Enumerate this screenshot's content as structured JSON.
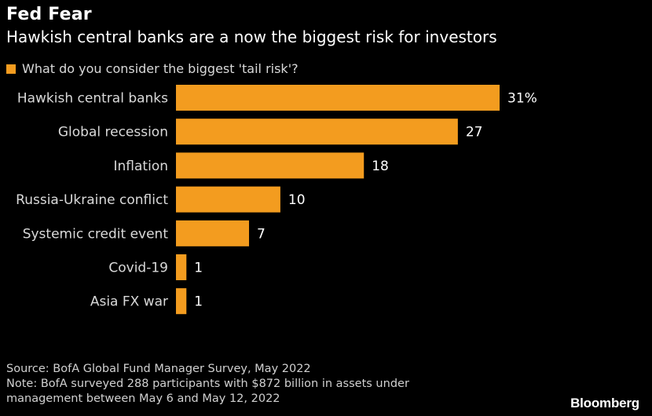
{
  "header": {
    "title": "Fed Fear",
    "subtitle": "Hawkish central banks are a now the biggest risk for investors"
  },
  "legend": {
    "label": "What do you consider the biggest 'tail risk'?",
    "color": "#F39C1F"
  },
  "chart_data": {
    "type": "bar",
    "orientation": "horizontal",
    "categories": [
      "Hawkish central banks",
      "Global recession",
      "Inflation",
      "Russia-Ukraine conflict",
      "Systemic credit event",
      "Covid-19",
      "Asia FX war"
    ],
    "series": [
      {
        "name": "What do you consider the biggest 'tail risk'?",
        "values": [
          31,
          27,
          18,
          10,
          7,
          1,
          1
        ],
        "value_labels": [
          "31%",
          "27",
          "18",
          "10",
          "7",
          "1",
          "1"
        ]
      }
    ],
    "xlim": [
      0,
      31
    ],
    "grid": false,
    "legend_position": "top-left"
  },
  "footer": {
    "source": "Source: BofA Global Fund Manager Survey, May 2022",
    "note_line1": "Note: BofA surveyed 288 participants with $872 billion in assets under",
    "note_line2": "management between May 6 and May 12, 2022"
  },
  "brand": "Bloomberg"
}
